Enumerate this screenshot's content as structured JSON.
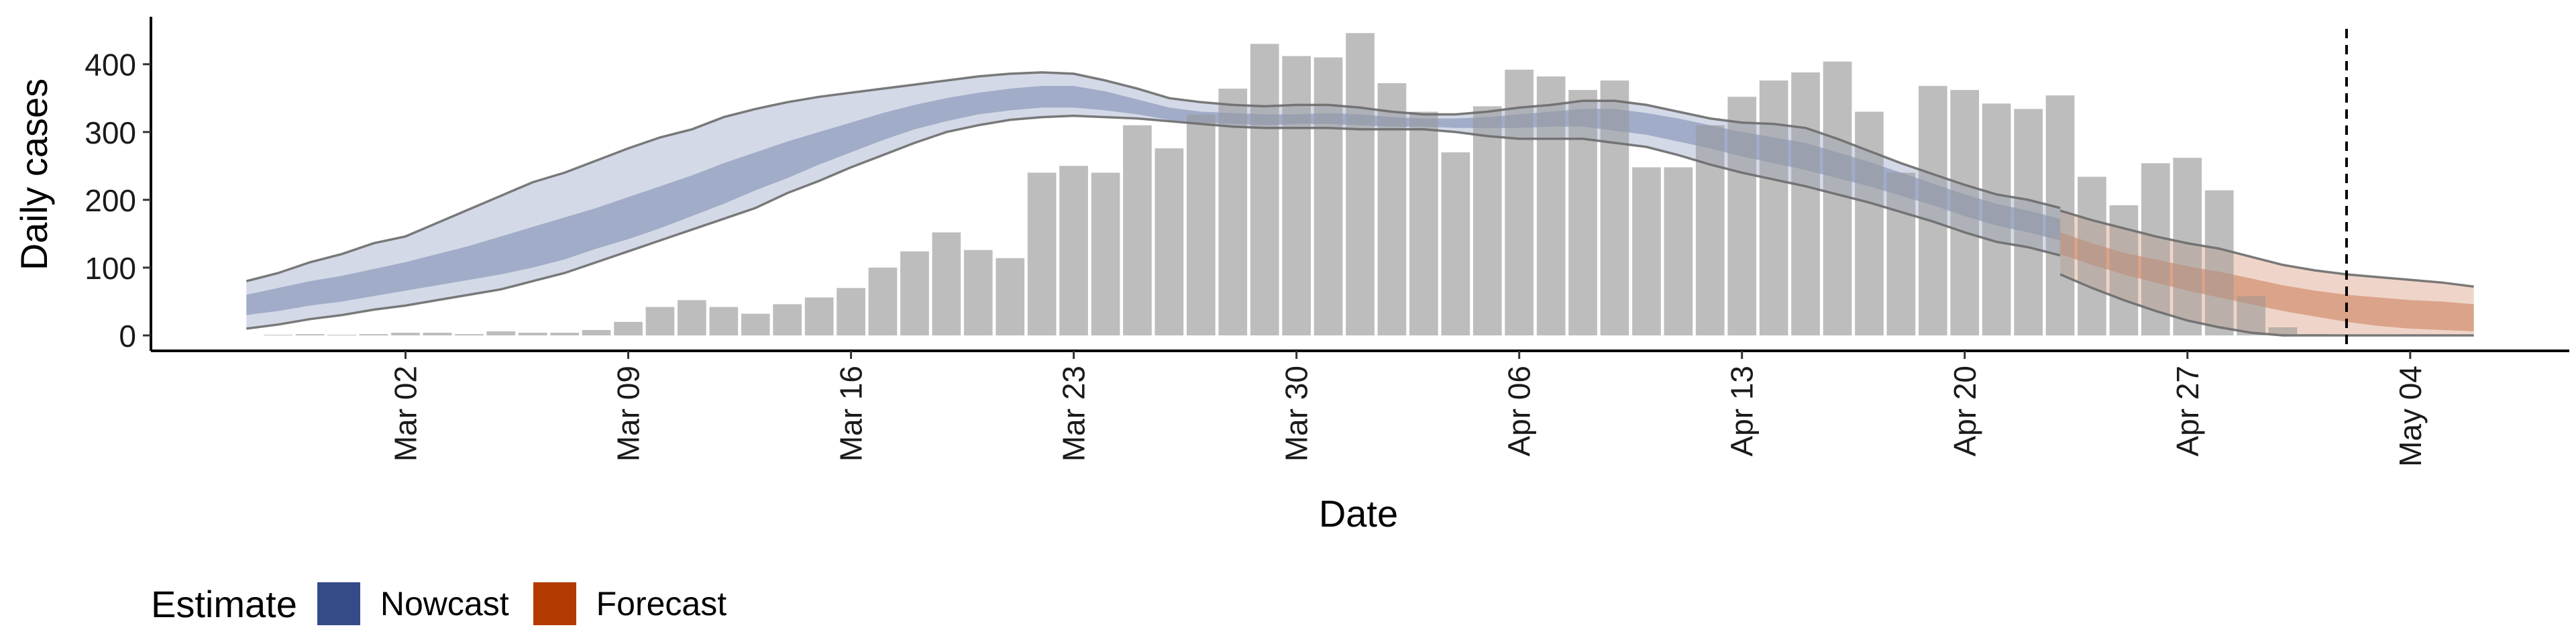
{
  "chart_data": {
    "type": "bar",
    "xlabel": "Date",
    "ylabel": "Daily cases",
    "ylim": [
      0,
      470
    ],
    "y_ticks": [
      0,
      100,
      200,
      300,
      400
    ],
    "x_tick_labels": [
      "Mar 02",
      "Mar 09",
      "Mar 16",
      "Mar 23",
      "Mar 30",
      "Apr 06",
      "Apr 13",
      "Apr 20",
      "Apr 27",
      "May 04"
    ],
    "x_tick_dates": [
      "2020-03-02",
      "2020-03-09",
      "2020-03-16",
      "2020-03-23",
      "2020-03-30",
      "2020-04-06",
      "2020-04-13",
      "2020-04-20",
      "2020-04-27",
      "2020-05-04"
    ],
    "x_range": [
      "2020-02-23",
      "2020-05-09"
    ],
    "grid": false,
    "legend_position": "bottom-left",
    "bar_color": "#bdbdbd",
    "reference_line": {
      "date": "2020-05-02",
      "style": "dashed"
    },
    "bars": {
      "dates": [
        "2020-02-27",
        "2020-02-28",
        "2020-02-29",
        "2020-03-01",
        "2020-03-02",
        "2020-03-03",
        "2020-03-04",
        "2020-03-05",
        "2020-03-06",
        "2020-03-07",
        "2020-03-08",
        "2020-03-09",
        "2020-03-10",
        "2020-03-11",
        "2020-03-12",
        "2020-03-13",
        "2020-03-14",
        "2020-03-15",
        "2020-03-16",
        "2020-03-17",
        "2020-03-18",
        "2020-03-19",
        "2020-03-20",
        "2020-03-21",
        "2020-03-22",
        "2020-03-23",
        "2020-03-24",
        "2020-03-25",
        "2020-03-26",
        "2020-03-27",
        "2020-03-28",
        "2020-03-29",
        "2020-03-30",
        "2020-03-31",
        "2020-04-01",
        "2020-04-02",
        "2020-04-03",
        "2020-04-04",
        "2020-04-05",
        "2020-04-06",
        "2020-04-07",
        "2020-04-08",
        "2020-04-09",
        "2020-04-10",
        "2020-04-11",
        "2020-04-12",
        "2020-04-13",
        "2020-04-14",
        "2020-04-15",
        "2020-04-16",
        "2020-04-17",
        "2020-04-18",
        "2020-04-19",
        "2020-04-20",
        "2020-04-21",
        "2020-04-22",
        "2020-04-23",
        "2020-04-24",
        "2020-04-25",
        "2020-04-26",
        "2020-04-27",
        "2020-04-28",
        "2020-04-29",
        "2020-04-30",
        "2020-05-01"
      ],
      "values": [
        1,
        2,
        1,
        2,
        4,
        4,
        2,
        6,
        4,
        4,
        8,
        20,
        42,
        52,
        42,
        32,
        46,
        56,
        70,
        100,
        124,
        152,
        126,
        114,
        240,
        250,
        240,
        310,
        276,
        326,
        364,
        430,
        412,
        410,
        446,
        372,
        330,
        270,
        338,
        392,
        382,
        362,
        376,
        248,
        248,
        310,
        352,
        376,
        388,
        404,
        330,
        240,
        368,
        362,
        342,
        334,
        354,
        234,
        192,
        254,
        262,
        214,
        58,
        12,
        2
      ]
    },
    "series": [
      {
        "name": "Nowcast",
        "color": "#354A89",
        "dates": [
          "2020-02-26",
          "2020-02-27",
          "2020-02-28",
          "2020-02-29",
          "2020-03-01",
          "2020-03-02",
          "2020-03-03",
          "2020-03-04",
          "2020-03-05",
          "2020-03-06",
          "2020-03-07",
          "2020-03-08",
          "2020-03-09",
          "2020-03-10",
          "2020-03-11",
          "2020-03-12",
          "2020-03-13",
          "2020-03-14",
          "2020-03-15",
          "2020-03-16",
          "2020-03-17",
          "2020-03-18",
          "2020-03-19",
          "2020-03-20",
          "2020-03-21",
          "2020-03-22",
          "2020-03-23",
          "2020-03-24",
          "2020-03-25",
          "2020-03-26",
          "2020-03-27",
          "2020-03-28",
          "2020-03-29",
          "2020-03-30",
          "2020-03-31",
          "2020-04-01",
          "2020-04-02",
          "2020-04-03",
          "2020-04-04",
          "2020-04-05",
          "2020-04-06",
          "2020-04-07",
          "2020-04-08",
          "2020-04-09",
          "2020-04-10",
          "2020-04-11",
          "2020-04-12",
          "2020-04-13",
          "2020-04-14",
          "2020-04-15",
          "2020-04-16",
          "2020-04-17",
          "2020-04-18",
          "2020-04-19",
          "2020-04-20",
          "2020-04-21",
          "2020-04-22",
          "2020-04-23"
        ],
        "outer_upper": [
          80,
          92,
          108,
          120,
          136,
          146,
          166,
          186,
          206,
          226,
          240,
          258,
          276,
          292,
          304,
          322,
          334,
          344,
          352,
          358,
          364,
          370,
          376,
          382,
          386,
          388,
          386,
          376,
          364,
          350,
          344,
          340,
          338,
          340,
          340,
          336,
          330,
          326,
          326,
          330,
          336,
          340,
          346,
          346,
          340,
          330,
          320,
          314,
          312,
          306,
          290,
          272,
          254,
          238,
          222,
          208,
          200,
          188
        ],
        "outer_lower": [
          10,
          16,
          24,
          30,
          38,
          44,
          52,
          60,
          68,
          80,
          92,
          108,
          124,
          140,
          156,
          172,
          188,
          210,
          228,
          248,
          266,
          284,
          300,
          310,
          318,
          322,
          324,
          322,
          320,
          316,
          312,
          308,
          306,
          306,
          306,
          304,
          304,
          304,
          300,
          294,
          290,
          290,
          290,
          284,
          278,
          266,
          252,
          240,
          230,
          220,
          208,
          196,
          182,
          168,
          152,
          138,
          130,
          118
        ],
        "inner_upper": [
          60,
          70,
          80,
          88,
          98,
          108,
          120,
          132,
          146,
          160,
          174,
          188,
          204,
          220,
          236,
          254,
          270,
          286,
          300,
          314,
          328,
          340,
          350,
          358,
          364,
          368,
          368,
          360,
          348,
          336,
          330,
          328,
          326,
          326,
          328,
          326,
          322,
          320,
          320,
          322,
          326,
          330,
          334,
          334,
          328,
          320,
          310,
          300,
          292,
          284,
          270,
          256,
          240,
          224,
          208,
          194,
          184,
          172
        ],
        "inner_lower": [
          30,
          36,
          44,
          50,
          58,
          66,
          74,
          82,
          90,
          100,
          112,
          128,
          142,
          158,
          176,
          194,
          214,
          232,
          252,
          270,
          288,
          304,
          316,
          326,
          332,
          336,
          336,
          332,
          326,
          318,
          314,
          312,
          310,
          312,
          312,
          310,
          308,
          308,
          306,
          306,
          306,
          308,
          308,
          302,
          296,
          286,
          276,
          264,
          254,
          244,
          232,
          220,
          206,
          192,
          176,
          162,
          152,
          140
        ]
      },
      {
        "name": "Forecast",
        "color": "#B33A00",
        "dates": [
          "2020-04-23",
          "2020-04-24",
          "2020-04-25",
          "2020-04-26",
          "2020-04-27",
          "2020-04-28",
          "2020-04-29",
          "2020-04-30",
          "2020-05-01",
          "2020-05-02",
          "2020-05-03",
          "2020-05-04",
          "2020-05-05",
          "2020-05-06"
        ],
        "outer_upper": [
          184,
          170,
          158,
          146,
          136,
          128,
          116,
          104,
          96,
          90,
          86,
          82,
          78,
          72
        ],
        "outer_lower": [
          90,
          70,
          52,
          36,
          22,
          12,
          4,
          0,
          0,
          0,
          0,
          0,
          0,
          0
        ],
        "inner_upper": [
          152,
          136,
          122,
          112,
          102,
          94,
          84,
          74,
          66,
          60,
          56,
          52,
          50,
          46
        ],
        "inner_lower": [
          120,
          104,
          90,
          78,
          66,
          56,
          46,
          36,
          28,
          20,
          14,
          10,
          8,
          6
        ]
      }
    ]
  },
  "legend": {
    "title": "Estimate",
    "items": [
      {
        "label": "Nowcast",
        "color": "#354A89"
      },
      {
        "label": "Forecast",
        "color": "#B33A00"
      }
    ]
  }
}
